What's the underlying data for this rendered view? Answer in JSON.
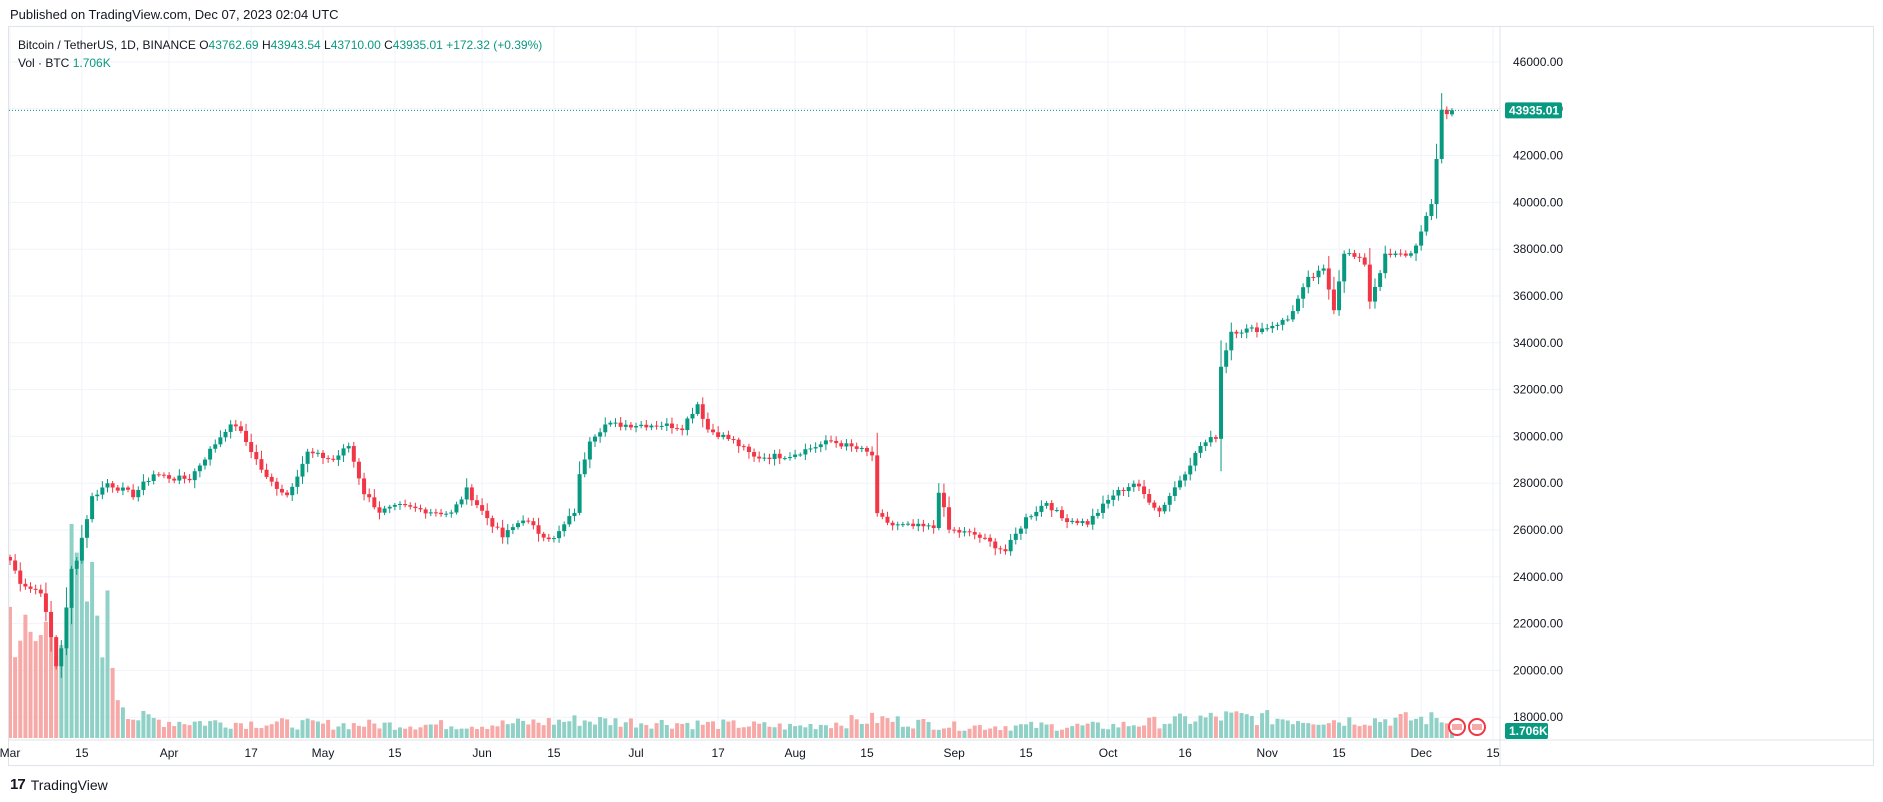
{
  "header": {
    "published": "Published on TradingView.com, Dec 07, 2023 02:04 UTC"
  },
  "legend": {
    "symbol": "Bitcoin / TetherUS, 1D, BINANCE",
    "open_label": "O",
    "open": "43762.69",
    "high_label": "H",
    "high": "43943.54",
    "low_label": "L",
    "low": "43710.00",
    "close_label": "C",
    "close": "43935.01",
    "change": "+172.32 (+0.39%)",
    "vol_label": "Vol · BTC",
    "vol": "1.706K"
  },
  "footer": {
    "brand": "TradingView",
    "logo_glyph": "17"
  },
  "colors": {
    "up": "#089981",
    "down": "#f23645",
    "vol_up": "#8fd1c7",
    "vol_down": "#f7a9a7",
    "grid": "#f0f3fa"
  },
  "chart_data": {
    "type": "candlestick",
    "start_date": "2023-03-01",
    "ylim": [
      17000,
      46500
    ],
    "y_ticks": [
      "18000.00",
      "20000.00",
      "22000.00",
      "24000.00",
      "26000.00",
      "28000.00",
      "30000.00",
      "32000.00",
      "34000.00",
      "36000.00",
      "38000.00",
      "40000.00",
      "42000.00",
      "44000.00",
      "46000.00"
    ],
    "x_ticks": [
      {
        "label": "Mar",
        "date": "2023-03-01"
      },
      {
        "label": "15",
        "date": "2023-03-15"
      },
      {
        "label": "Apr",
        "date": "2023-04-01"
      },
      {
        "label": "17",
        "date": "2023-04-17"
      },
      {
        "label": "May",
        "date": "2023-05-01"
      },
      {
        "label": "15",
        "date": "2023-05-15"
      },
      {
        "label": "Jun",
        "date": "2023-06-01"
      },
      {
        "label": "15",
        "date": "2023-06-15"
      },
      {
        "label": "Jul",
        "date": "2023-07-01"
      },
      {
        "label": "17",
        "date": "2023-07-17"
      },
      {
        "label": "Aug",
        "date": "2023-08-01"
      },
      {
        "label": "15",
        "date": "2023-08-15"
      },
      {
        "label": "Sep",
        "date": "2023-09-01"
      },
      {
        "label": "15",
        "date": "2023-09-15"
      },
      {
        "label": "Oct",
        "date": "2023-10-01"
      },
      {
        "label": "16",
        "date": "2023-10-16"
      },
      {
        "label": "Nov",
        "date": "2023-11-01"
      },
      {
        "label": "15",
        "date": "2023-11-15"
      },
      {
        "label": "Dec",
        "date": "2023-12-01"
      },
      {
        "label": "15",
        "date": "2023-12-15"
      }
    ],
    "last_price": 43935.01,
    "last_price_label": "43935.01",
    "last_volume_label": "1.706K",
    "close_anchors": [
      [
        "2023-03-01",
        24700
      ],
      [
        "2023-03-03",
        23800
      ],
      [
        "2023-03-05",
        23500
      ],
      [
        "2023-03-07",
        23400
      ],
      [
        "2023-03-09",
        21400
      ],
      [
        "2023-03-10",
        20200
      ],
      [
        "2023-03-11",
        21000
      ],
      [
        "2023-03-12",
        22600
      ],
      [
        "2023-03-13",
        24300
      ],
      [
        "2023-03-14",
        24800
      ],
      [
        "2023-03-17",
        27400
      ],
      [
        "2023-03-20",
        28000
      ],
      [
        "2023-03-25",
        27500
      ],
      [
        "2023-03-29",
        28400
      ],
      [
        "2023-04-02",
        28200
      ],
      [
        "2023-04-05",
        28200
      ],
      [
        "2023-04-10",
        29700
      ],
      [
        "2023-04-12",
        30300
      ],
      [
        "2023-04-14",
        30500
      ],
      [
        "2023-04-17",
        29400
      ],
      [
        "2023-04-20",
        28200
      ],
      [
        "2023-04-24",
        27500
      ],
      [
        "2023-04-28",
        29300
      ],
      [
        "2023-05-03",
        29000
      ],
      [
        "2023-05-06",
        29600
      ],
      [
        "2023-05-09",
        27600
      ],
      [
        "2023-05-12",
        26800
      ],
      [
        "2023-05-16",
        27000
      ],
      [
        "2023-05-22",
        26800
      ],
      [
        "2023-05-26",
        26700
      ],
      [
        "2023-05-29",
        27700
      ],
      [
        "2023-06-01",
        26800
      ],
      [
        "2023-06-05",
        25700
      ],
      [
        "2023-06-09",
        26500
      ],
      [
        "2023-06-12",
        25900
      ],
      [
        "2023-06-15",
        25600
      ],
      [
        "2023-06-19",
        26800
      ],
      [
        "2023-06-20",
        28300
      ],
      [
        "2023-06-22",
        29900
      ],
      [
        "2023-06-25",
        30500
      ],
      [
        "2023-06-30",
        30500
      ],
      [
        "2023-07-06",
        30500
      ],
      [
        "2023-07-10",
        30400
      ],
      [
        "2023-07-13",
        31400
      ],
      [
        "2023-07-15",
        30300
      ],
      [
        "2023-07-20",
        29800
      ],
      [
        "2023-07-24",
        29100
      ],
      [
        "2023-07-31",
        29200
      ],
      [
        "2023-08-08",
        29800
      ],
      [
        "2023-08-14",
        29400
      ],
      [
        "2023-08-16",
        29200
      ],
      [
        "2023-08-17",
        26600
      ],
      [
        "2023-08-20",
        26200
      ],
      [
        "2023-08-28",
        26100
      ],
      [
        "2023-08-29",
        27700
      ],
      [
        "2023-08-31",
        26000
      ],
      [
        "2023-09-05",
        25800
      ],
      [
        "2023-09-11",
        25100
      ],
      [
        "2023-09-15",
        26500
      ],
      [
        "2023-09-19",
        27200
      ],
      [
        "2023-09-22",
        26500
      ],
      [
        "2023-09-27",
        26300
      ],
      [
        "2023-10-02",
        27500
      ],
      [
        "2023-10-06",
        28000
      ],
      [
        "2023-10-11",
        26800
      ],
      [
        "2023-10-16",
        28500
      ],
      [
        "2023-10-19",
        29600
      ],
      [
        "2023-10-22",
        30000
      ],
      [
        "2023-10-23",
        33000
      ],
      [
        "2023-10-25",
        34500
      ],
      [
        "2023-10-31",
        34600
      ],
      [
        "2023-11-05",
        35000
      ],
      [
        "2023-11-09",
        36700
      ],
      [
        "2023-11-12",
        37100
      ],
      [
        "2023-11-14",
        35500
      ],
      [
        "2023-11-16",
        37900
      ],
      [
        "2023-11-20",
        37400
      ],
      [
        "2023-11-21",
        35800
      ],
      [
        "2023-11-24",
        37700
      ],
      [
        "2023-11-29",
        37800
      ],
      [
        "2023-12-01",
        38700
      ],
      [
        "2023-12-03",
        39900
      ],
      [
        "2023-12-04",
        41900
      ],
      [
        "2023-12-05",
        44000
      ],
      [
        "2023-12-06",
        43760
      ],
      [
        "2023-12-07",
        43935
      ]
    ],
    "volume_anchors": [
      [
        "2023-03-01",
        2100
      ],
      [
        "2023-03-05",
        1500
      ],
      [
        "2023-03-09",
        1900
      ],
      [
        "2023-03-11",
        2200
      ],
      [
        "2023-03-13",
        2700
      ],
      [
        "2023-03-15",
        2500
      ],
      [
        "2023-03-17",
        2300
      ],
      [
        "2023-03-20",
        1900
      ],
      [
        "2023-03-22",
        800
      ],
      [
        "2023-03-25",
        350
      ],
      [
        "2023-04-01",
        280
      ],
      [
        "2023-05-01",
        230
      ],
      [
        "2023-06-01",
        220
      ],
      [
        "2023-06-20",
        300
      ],
      [
        "2023-08-01",
        190
      ],
      [
        "2023-08-17",
        320
      ],
      [
        "2023-09-01",
        200
      ],
      [
        "2023-10-01",
        200
      ],
      [
        "2023-10-24",
        360
      ],
      [
        "2023-11-15",
        300
      ],
      [
        "2023-12-05",
        330
      ],
      [
        "2023-12-07",
        170
      ]
    ]
  }
}
